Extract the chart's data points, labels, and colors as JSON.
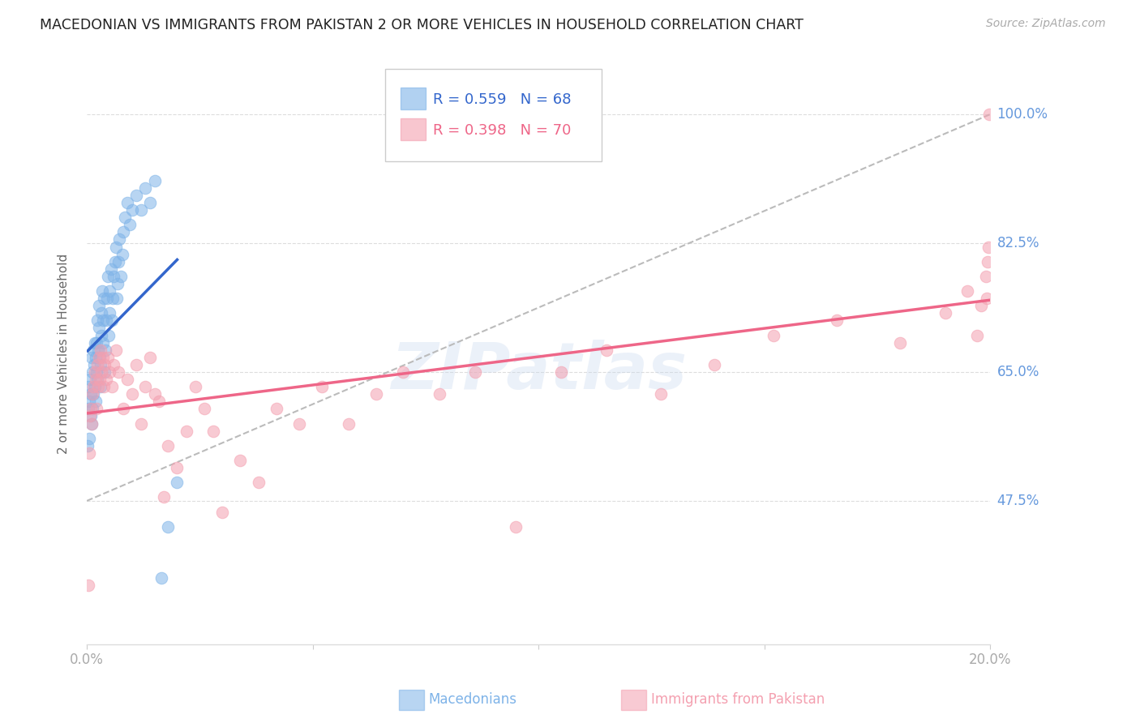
{
  "title": "MACEDONIAN VS IMMIGRANTS FROM PAKISTAN 2 OR MORE VEHICLES IN HOUSEHOLD CORRELATION CHART",
  "source": "Source: ZipAtlas.com",
  "ylabel": "2 or more Vehicles in Household",
  "ytick_labels": [
    "100.0%",
    "82.5%",
    "65.0%",
    "47.5%"
  ],
  "ytick_values": [
    1.0,
    0.825,
    0.65,
    0.475
  ],
  "legend_blue_r": "R = 0.559",
  "legend_blue_n": "N = 68",
  "legend_pink_r": "R = 0.398",
  "legend_pink_n": "N = 70",
  "legend_blue_label": "Macedonians",
  "legend_pink_label": "Immigrants from Pakistan",
  "blue_color": "#7EB3E8",
  "pink_color": "#F4A0B0",
  "blue_line_color": "#3366CC",
  "pink_line_color": "#EE6688",
  "dashed_line_color": "#BBBBBB",
  "title_color": "#222222",
  "source_color": "#AAAAAA",
  "ytick_color": "#6699DD",
  "xtick_color": "#AAAAAA",
  "background_color": "#FFFFFF",
  "grid_color": "#DDDDDD",
  "xlim": [
    0.0,
    0.2
  ],
  "ylim": [
    0.28,
    1.07
  ],
  "blue_scatter_x": [
    0.0002,
    0.0003,
    0.0004,
    0.0005,
    0.0006,
    0.0007,
    0.0008,
    0.0009,
    0.001,
    0.001,
    0.0012,
    0.0013,
    0.0014,
    0.0015,
    0.0016,
    0.0017,
    0.0018,
    0.0019,
    0.002,
    0.0021,
    0.0022,
    0.0023,
    0.0024,
    0.0025,
    0.0026,
    0.0027,
    0.0028,
    0.003,
    0.0031,
    0.0032,
    0.0033,
    0.0034,
    0.0035,
    0.0036,
    0.0038,
    0.004,
    0.0042,
    0.0043,
    0.0045,
    0.0046,
    0.0048,
    0.005,
    0.0051,
    0.0053,
    0.0055,
    0.0057,
    0.006,
    0.0062,
    0.0064,
    0.0066,
    0.0068,
    0.007,
    0.0072,
    0.0075,
    0.0078,
    0.008,
    0.0085,
    0.009,
    0.0095,
    0.01,
    0.011,
    0.012,
    0.013,
    0.014,
    0.015,
    0.0165,
    0.018,
    0.02
  ],
  "blue_scatter_y": [
    0.55,
    0.6,
    0.63,
    0.56,
    0.61,
    0.64,
    0.59,
    0.62,
    0.58,
    0.67,
    0.6,
    0.65,
    0.68,
    0.62,
    0.66,
    0.69,
    0.63,
    0.67,
    0.61,
    0.65,
    0.69,
    0.72,
    0.64,
    0.68,
    0.71,
    0.74,
    0.67,
    0.63,
    0.66,
    0.7,
    0.73,
    0.76,
    0.69,
    0.72,
    0.75,
    0.65,
    0.68,
    0.72,
    0.75,
    0.78,
    0.7,
    0.73,
    0.76,
    0.79,
    0.72,
    0.75,
    0.78,
    0.8,
    0.82,
    0.75,
    0.77,
    0.8,
    0.83,
    0.78,
    0.81,
    0.84,
    0.86,
    0.88,
    0.85,
    0.87,
    0.89,
    0.87,
    0.9,
    0.88,
    0.91,
    0.37,
    0.44,
    0.5
  ],
  "pink_scatter_x": [
    0.0003,
    0.0005,
    0.0007,
    0.0009,
    0.0011,
    0.0013,
    0.0015,
    0.0017,
    0.0019,
    0.0021,
    0.0023,
    0.0025,
    0.0027,
    0.0029,
    0.0031,
    0.0033,
    0.0035,
    0.0038,
    0.004,
    0.0043,
    0.0046,
    0.005,
    0.0055,
    0.006,
    0.0065,
    0.007,
    0.008,
    0.009,
    0.01,
    0.011,
    0.012,
    0.013,
    0.014,
    0.015,
    0.016,
    0.017,
    0.018,
    0.02,
    0.022,
    0.024,
    0.026,
    0.028,
    0.03,
    0.034,
    0.038,
    0.042,
    0.047,
    0.052,
    0.058,
    0.064,
    0.07,
    0.078,
    0.086,
    0.095,
    0.105,
    0.115,
    0.127,
    0.139,
    0.152,
    0.166,
    0.18,
    0.19,
    0.195,
    0.197,
    0.198,
    0.199,
    0.1992,
    0.1994,
    0.1996,
    0.1998
  ],
  "pink_scatter_y": [
    0.36,
    0.54,
    0.59,
    0.6,
    0.58,
    0.62,
    0.63,
    0.65,
    0.64,
    0.6,
    0.66,
    0.63,
    0.67,
    0.64,
    0.68,
    0.65,
    0.67,
    0.63,
    0.66,
    0.64,
    0.67,
    0.65,
    0.63,
    0.66,
    0.68,
    0.65,
    0.6,
    0.64,
    0.62,
    0.66,
    0.58,
    0.63,
    0.67,
    0.62,
    0.61,
    0.48,
    0.55,
    0.52,
    0.57,
    0.63,
    0.6,
    0.57,
    0.46,
    0.53,
    0.5,
    0.6,
    0.58,
    0.63,
    0.58,
    0.62,
    0.65,
    0.62,
    0.65,
    0.44,
    0.65,
    0.68,
    0.62,
    0.66,
    0.7,
    0.72,
    0.69,
    0.73,
    0.76,
    0.7,
    0.74,
    0.78,
    0.75,
    0.8,
    0.82,
    1.0
  ],
  "watermark_text": "ZIPatlas",
  "watermark_color": "#C8D8EE",
  "watermark_alpha": 0.35
}
